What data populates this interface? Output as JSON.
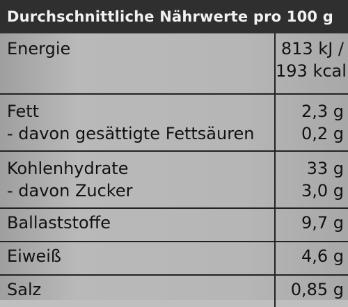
{
  "header": {
    "title": "Durchschnittliche Nährwerte pro 100 g"
  },
  "table": {
    "rows": [
      {
        "labels": [
          "Energie"
        ],
        "values": [
          "813 kJ /",
          "193 kcal"
        ]
      },
      {
        "labels": [
          "Fett",
          "- davon gesättigte Fettsäuren"
        ],
        "values": [
          "2,3 g",
          "0,2 g"
        ]
      },
      {
        "labels": [
          "Kohlenhydrate",
          "- davon Zucker"
        ],
        "values": [
          "33 g",
          "3,0 g"
        ]
      },
      {
        "labels": [
          "Ballaststoffe"
        ],
        "values": [
          "9,7 g"
        ]
      },
      {
        "labels": [
          "Eiweiß"
        ],
        "values": [
          "4,6 g"
        ]
      },
      {
        "labels": [
          "Salz"
        ],
        "values": [
          "0,85 g"
        ]
      }
    ]
  }
}
